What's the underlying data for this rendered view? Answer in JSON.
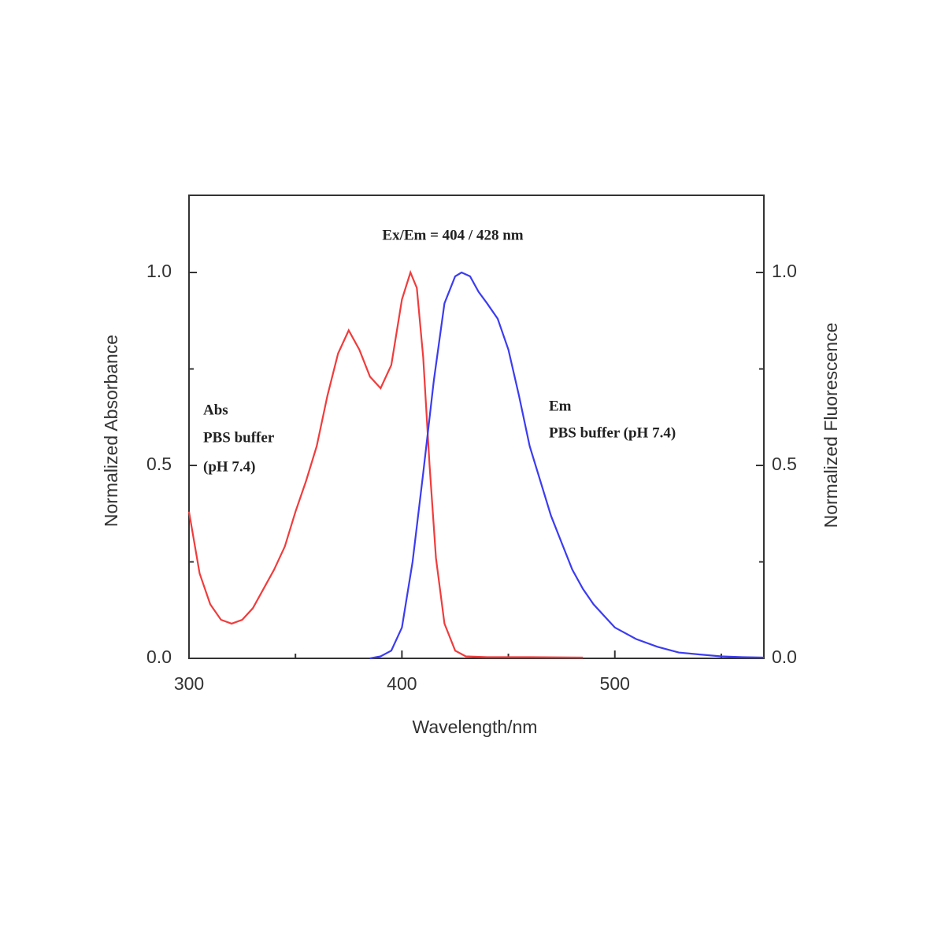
{
  "chart_data": {
    "type": "line",
    "x_label": "Wavelength/nm",
    "y_label": "Normalized Absorbance",
    "y2_label": "Normalized Fluorescence",
    "annotations": [
      "Ex/Em = 404 / 428 nm",
      "Abs",
      "PBS buffer",
      "(pH 7.4)",
      "Em",
      "PBS buffer (pH 7.4)"
    ],
    "xlim": [
      300,
      570
    ],
    "xticks": [
      300,
      400,
      500
    ],
    "xminorticks": [
      350,
      450,
      550
    ],
    "ylim": [
      0,
      1.2
    ],
    "yticks": [
      {
        "value": 0,
        "label": "0.0"
      },
      {
        "value": 0.5,
        "label": "0.5"
      },
      {
        "value": 1,
        "label": "1.0"
      }
    ],
    "yminorticks": [
      0.25,
      0.75
    ],
    "y2lim": [
      0,
      1.2
    ],
    "y2ticks": [
      {
        "value": 0,
        "label": "0.0"
      },
      {
        "value": 0.5,
        "label": "0.5"
      },
      {
        "value": 1,
        "label": "1.0"
      }
    ],
    "y2minorticks": [
      0.25,
      0.75
    ],
    "series": [
      {
        "name": "Abs",
        "color": "#f03c3c",
        "x": [
          300,
          305,
          310,
          315,
          320,
          325,
          330,
          335,
          340,
          345,
          350,
          355,
          360,
          365,
          370,
          375,
          380,
          385,
          390,
          395,
          400,
          404,
          407,
          410,
          413,
          416,
          420,
          425,
          430,
          440,
          460,
          485
        ],
        "values": [
          0.38,
          0.22,
          0.14,
          0.1,
          0.09,
          0.1,
          0.13,
          0.18,
          0.23,
          0.29,
          0.38,
          0.46,
          0.55,
          0.68,
          0.79,
          0.85,
          0.8,
          0.73,
          0.7,
          0.76,
          0.93,
          1.0,
          0.96,
          0.78,
          0.5,
          0.26,
          0.09,
          0.02,
          0.005,
          0.003,
          0.003,
          0.002
        ]
      },
      {
        "name": "Em",
        "color": "#3c3cf0",
        "axis": "y2",
        "x": [
          385,
          390,
          395,
          400,
          405,
          410,
          415,
          420,
          425,
          428,
          432,
          436,
          440,
          445,
          450,
          455,
          460,
          465,
          470,
          475,
          480,
          485,
          490,
          495,
          500,
          510,
          520,
          530,
          540,
          550,
          560,
          570
        ],
        "values": [
          0,
          0.005,
          0.02,
          0.08,
          0.25,
          0.48,
          0.72,
          0.92,
          0.99,
          1.0,
          0.99,
          0.95,
          0.92,
          0.88,
          0.8,
          0.68,
          0.55,
          0.46,
          0.37,
          0.3,
          0.23,
          0.18,
          0.14,
          0.11,
          0.08,
          0.05,
          0.03,
          0.015,
          0.01,
          0.005,
          0.003,
          0.002
        ]
      }
    ]
  }
}
